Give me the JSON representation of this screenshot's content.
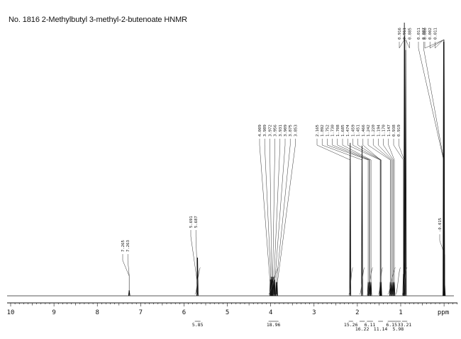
{
  "title": "No. 1816 2-Methylbutyl 3-methyl-2-butenoate HNMR",
  "chart_data": {
    "type": "line",
    "title": "No. 1816 2-Methylbutyl 3-methyl-2-butenoate HNMR",
    "xlabel": "ppm",
    "ylabel": "",
    "xlim": [
      10,
      -0.3
    ],
    "x_reversed": true,
    "grid": false,
    "x_ticks": [
      "10",
      "9",
      "8",
      "7",
      "6",
      "5",
      "4",
      "3",
      "2",
      "1",
      "ppm"
    ],
    "x_tick_values": [
      10,
      9,
      8,
      7,
      6,
      5,
      4,
      3,
      2,
      1
    ],
    "peaks": [
      {
        "ppm": 7.265,
        "label": "7.265",
        "height": 0.02
      },
      {
        "ppm": 7.263,
        "label": "7.263",
        "height": 0.02
      },
      {
        "ppm": 5.691,
        "label": "5.691",
        "height": 0.14
      },
      {
        "ppm": 5.687,
        "label": "5.687",
        "height": 0.14
      },
      {
        "ppm": 4.009,
        "label": "4.009",
        "height": 0.06
      },
      {
        "ppm": 3.989,
        "label": "3.989",
        "height": 0.07
      },
      {
        "ppm": 3.972,
        "label": "3.972",
        "height": 0.06
      },
      {
        "ppm": 3.956,
        "label": "3.956",
        "height": 0.07
      },
      {
        "ppm": 3.931,
        "label": "3.931",
        "height": 0.07
      },
      {
        "ppm": 3.909,
        "label": "3.909",
        "height": 0.06
      },
      {
        "ppm": 3.875,
        "label": "3.875",
        "height": 0.05
      },
      {
        "ppm": 3.853,
        "label": "3.853",
        "height": 0.05
      },
      {
        "ppm": 2.165,
        "label": "2.165",
        "height": 0.56
      },
      {
        "ppm": 1.892,
        "label": "1.892",
        "height": 0.55
      },
      {
        "ppm": 1.752,
        "label": "1.752",
        "height": 0.05
      },
      {
        "ppm": 1.73,
        "label": "1.730",
        "height": 0.05
      },
      {
        "ppm": 1.708,
        "label": "1.708",
        "height": 0.05
      },
      {
        "ppm": 1.685,
        "label": "1.685",
        "height": 0.05
      },
      {
        "ppm": 1.474,
        "label": "1.474",
        "height": 0.05
      },
      {
        "ppm": 1.459,
        "label": "1.459",
        "height": 0.05
      },
      {
        "ppm": 1.451,
        "label": "1.451",
        "height": 0.05
      },
      {
        "ppm": 1.466,
        "label": "1.466",
        "height": 0.05
      },
      {
        "ppm": 1.242,
        "label": "1.242",
        "height": 0.05
      },
      {
        "ppm": 1.22,
        "label": "1.220",
        "height": 0.05
      },
      {
        "ppm": 1.194,
        "label": "1.194",
        "height": 0.05
      },
      {
        "ppm": 1.17,
        "label": "1.170",
        "height": 0.05
      },
      {
        "ppm": 1.147,
        "label": "1.147",
        "height": 0.05
      },
      {
        "ppm": 0.938,
        "label": "0.938",
        "height": 0.08
      },
      {
        "ppm": 0.919,
        "label": "0.919",
        "height": 0.12
      },
      {
        "ppm": 0.916,
        "label": "0.916",
        "height": 1.0
      },
      {
        "ppm": 0.911,
        "label": "0.911",
        "height": 0.95
      },
      {
        "ppm": 0.885,
        "label": "0.885",
        "height": 0.9
      },
      {
        "ppm": 0.011,
        "label": "0.011",
        "height": 0.05
      },
      {
        "ppm": 0.007,
        "label": "0.007",
        "height": 0.05
      },
      {
        "ppm": 0.0,
        "label": "0.000",
        "height": 0.93
      },
      {
        "ppm": 0.002,
        "label": "0.002",
        "height": 0.93
      },
      {
        "ppm": 0.011,
        "label": "0.011",
        "height": 0.93
      },
      {
        "ppm": -0.015,
        "label": "-0.015",
        "height": 0.04
      }
    ],
    "integrals": [
      {
        "from": 5.75,
        "to": 5.62,
        "value": "5.85"
      },
      {
        "from": 4.05,
        "to": 3.82,
        "value": "18.96"
      },
      {
        "from": 2.2,
        "to": 2.1,
        "value": "15.26"
      },
      {
        "from": 1.95,
        "to": 1.83,
        "value": "16.22"
      },
      {
        "from": 1.78,
        "to": 1.64,
        "value": "6.11"
      },
      {
        "from": 1.52,
        "to": 1.41,
        "value": "11.14"
      },
      {
        "from": 1.3,
        "to": 1.12,
        "value": "6.15"
      },
      {
        "from": 1.12,
        "to": 1.0,
        "value": "5.98"
      },
      {
        "from": 0.97,
        "to": 0.85,
        "value": "33.21"
      }
    ]
  }
}
